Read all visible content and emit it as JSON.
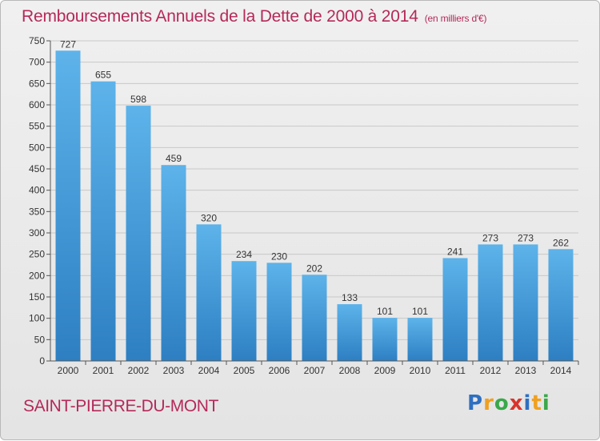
{
  "header": {
    "title": "Remboursements Annuels de la Dette de 2000 à 2014",
    "unit": "(en milliers d'€)"
  },
  "footer": {
    "commune": "SAINT-PIERRE-DU-MONT",
    "logo": "Proxiti"
  },
  "colors": {
    "title": "#b5295a",
    "bar_top": "#5db3ea",
    "bar_bottom": "#2d7fc2",
    "grid": "#c8c8c8"
  },
  "chart_data": {
    "type": "bar",
    "title": "Remboursements Annuels de la Dette de 2000 à 2014",
    "xlabel": "",
    "ylabel": "",
    "ylim": [
      0,
      750
    ],
    "ytick_step": 50,
    "grid": true,
    "categories": [
      "2000",
      "2001",
      "2002",
      "2003",
      "2004",
      "2005",
      "2006",
      "2007",
      "2008",
      "2009",
      "2010",
      "2011",
      "2012",
      "2013",
      "2014"
    ],
    "values": [
      727,
      655,
      598,
      459,
      320,
      234,
      230,
      202,
      133,
      101,
      101,
      241,
      273,
      273,
      262
    ]
  }
}
